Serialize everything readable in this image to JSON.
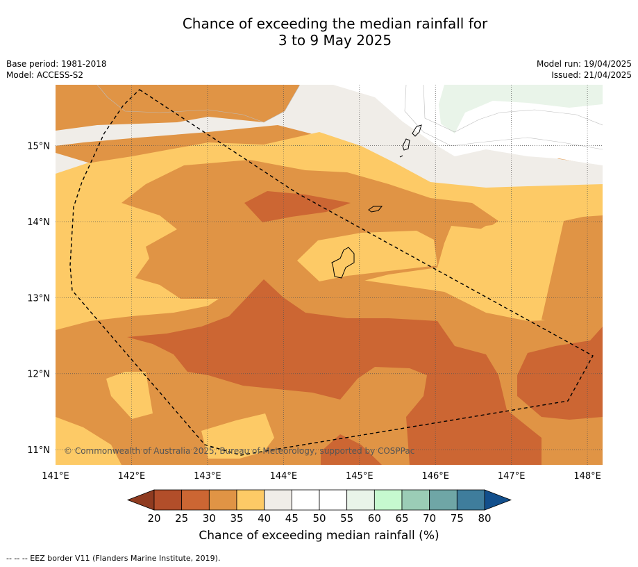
{
  "title_line1": "Chance of exceeding the median rainfall for",
  "title_line2": "3 to 9 May 2025",
  "meta_left": [
    "Base period: 1981-2018",
    "Model: ACCESS-S2"
  ],
  "meta_right": [
    "Model run: 19/04/2025",
    "Issued: 21/04/2025"
  ],
  "map": {
    "lon_range": [
      141.0,
      148.2
    ],
    "lat_range": [
      10.8,
      15.8
    ],
    "lon_ticks": [
      141,
      142,
      143,
      144,
      145,
      146,
      147,
      148
    ],
    "lat_ticks": [
      11,
      12,
      13,
      14,
      15
    ],
    "lon_tick_labels": [
      "141°E",
      "142°E",
      "143°E",
      "144°E",
      "145°E",
      "146°E",
      "147°E",
      "148°E"
    ],
    "lat_tick_labels": [
      "11°N",
      "12°N",
      "13°N",
      "14°N",
      "15°N"
    ],
    "gridlines": "dotted",
    "copyright": "© Commonwealth of Australia 2025, Bureau of Meteorology, supported by COSPPac"
  },
  "colorbar": {
    "label": "Chance of exceeding median rainfall (%)",
    "tick_labels": [
      "20",
      "25",
      "30",
      "35",
      "40",
      "45",
      "50",
      "55",
      "60",
      "65",
      "70",
      "75",
      "80"
    ],
    "colors": [
      "#b24e2a",
      "#cc6633",
      "#e09445",
      "#fdca66",
      "#f0ede8",
      "#ffffff",
      "#ffffff",
      "#e9f4e9",
      "#c6f9cf",
      "#9bcdb6",
      "#6fa6a6",
      "#3f7d9c"
    ],
    "under_color": "#8f3b20",
    "over_color": "#124f8c"
  },
  "legend_note": "--  --  -- EEZ border V11 (Flanders Marine Institute, 2019)."
}
